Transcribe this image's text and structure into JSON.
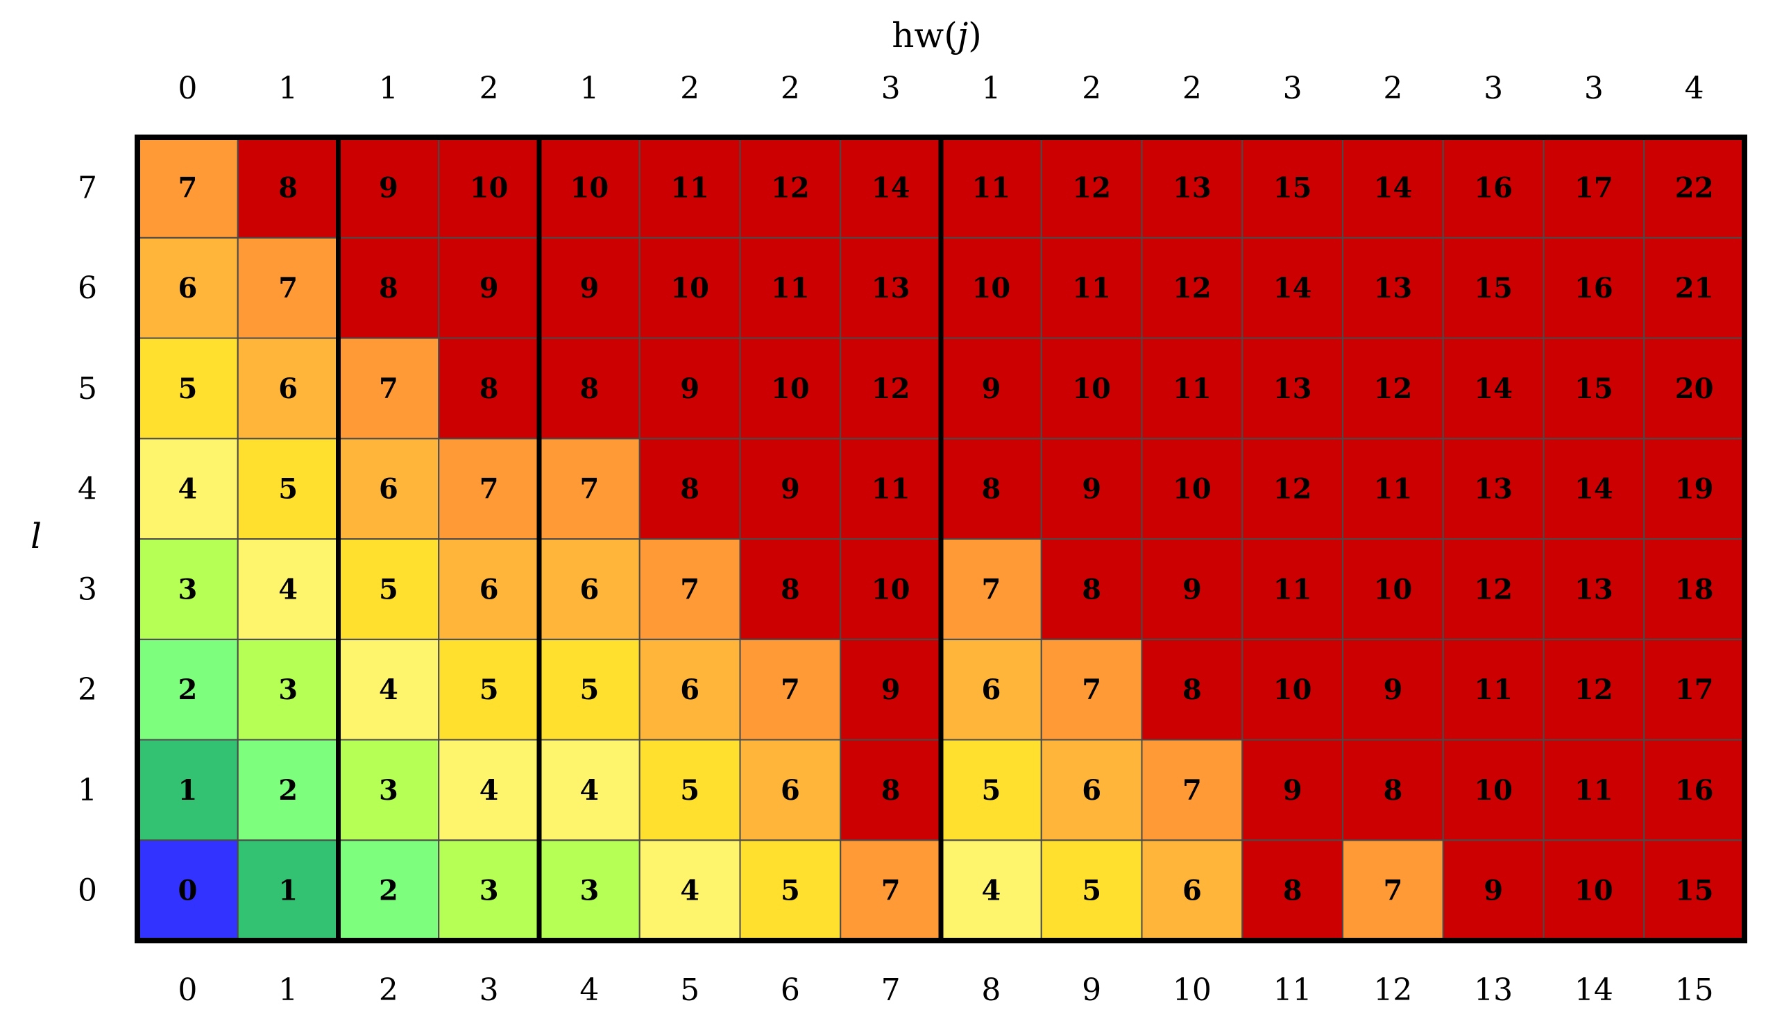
{
  "chart_data": {
    "type": "heatmap",
    "title": "",
    "top_axis_label": "hw(",
    "top_axis_label_var": "j",
    "top_axis_label_close": ")",
    "ylabel": "l",
    "xlabel": "",
    "x_categories": [
      "0",
      "1",
      "2",
      "3",
      "4",
      "5",
      "6",
      "7",
      "8",
      "9",
      "10",
      "11",
      "12",
      "13",
      "14",
      "15"
    ],
    "hw_labels": [
      "0",
      "1",
      "1",
      "2",
      "1",
      "2",
      "2",
      "3",
      "1",
      "2",
      "2",
      "3",
      "2",
      "3",
      "3",
      "4"
    ],
    "y_categories": [
      "0",
      "1",
      "2",
      "3",
      "4",
      "5",
      "6",
      "7"
    ],
    "values_by_row_l": [
      [
        0,
        1,
        2,
        3,
        3,
        4,
        5,
        7,
        4,
        5,
        6,
        8,
        7,
        9,
        10,
        15
      ],
      [
        1,
        2,
        3,
        4,
        4,
        5,
        6,
        8,
        5,
        6,
        7,
        9,
        8,
        10,
        11,
        16
      ],
      [
        2,
        3,
        4,
        5,
        5,
        6,
        7,
        9,
        6,
        7,
        8,
        10,
        9,
        11,
        12,
        17
      ],
      [
        3,
        4,
        5,
        6,
        6,
        7,
        8,
        10,
        7,
        8,
        9,
        11,
        10,
        12,
        13,
        18
      ],
      [
        4,
        5,
        6,
        7,
        7,
        8,
        9,
        11,
        8,
        9,
        10,
        12,
        11,
        13,
        14,
        19
      ],
      [
        5,
        6,
        7,
        8,
        8,
        9,
        10,
        12,
        9,
        10,
        11,
        13,
        12,
        14,
        15,
        20
      ],
      [
        6,
        7,
        8,
        9,
        9,
        10,
        11,
        13,
        10,
        11,
        12,
        14,
        13,
        15,
        16,
        21
      ],
      [
        7,
        8,
        9,
        10,
        10,
        11,
        12,
        14,
        11,
        12,
        13,
        15,
        14,
        16,
        17,
        22
      ]
    ],
    "group_boundaries_after_column": [
      1,
      3,
      7
    ],
    "color_scale": [
      {
        "value": 0,
        "color": "#3333ff"
      },
      {
        "value": 1,
        "color": "#33c172"
      },
      {
        "value": 2,
        "color": "#7dff7d"
      },
      {
        "value": 3,
        "color": "#b6ff55"
      },
      {
        "value": 4,
        "color": "#fff56d"
      },
      {
        "value": 5,
        "color": "#ffe02e"
      },
      {
        "value": 6,
        "color": "#ffb53a"
      },
      {
        "value": 7,
        "color": "#ff9a36"
      },
      {
        "value": 8,
        "color": "#cc0000"
      }
    ],
    "color_above_max": "#cc0000",
    "grid": true
  }
}
